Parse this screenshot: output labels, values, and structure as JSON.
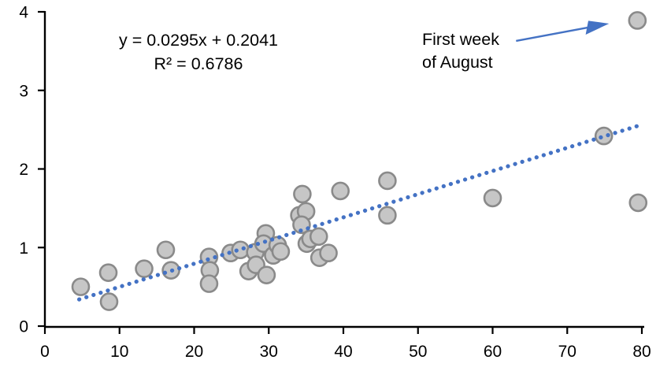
{
  "chart_data": {
    "type": "scatter",
    "title": "",
    "xlabel": "",
    "ylabel": "",
    "xlim": [
      0,
      80
    ],
    "ylim": [
      0,
      4
    ],
    "x_ticks": [
      0,
      10,
      20,
      30,
      40,
      50,
      60,
      70,
      80
    ],
    "y_ticks": [
      0,
      1,
      2,
      3,
      4
    ],
    "grid": false,
    "legend": null,
    "points": [
      [
        4.8,
        0.5
      ],
      [
        8.5,
        0.68
      ],
      [
        8.6,
        0.31
      ],
      [
        13.3,
        0.73
      ],
      [
        16.2,
        0.97
      ],
      [
        16.9,
        0.71
      ],
      [
        22.0,
        0.88
      ],
      [
        22.1,
        0.71
      ],
      [
        22.0,
        0.54
      ],
      [
        24.9,
        0.93
      ],
      [
        26.2,
        0.97
      ],
      [
        27.3,
        0.7
      ],
      [
        28.2,
        0.94
      ],
      [
        28.3,
        0.78
      ],
      [
        29.6,
        1.18
      ],
      [
        29.7,
        0.65
      ],
      [
        29.3,
        1.05
      ],
      [
        30.6,
        0.9
      ],
      [
        31.2,
        1.03
      ],
      [
        31.6,
        0.95
      ],
      [
        34.1,
        1.41
      ],
      [
        34.5,
        1.68
      ],
      [
        35.0,
        1.46
      ],
      [
        34.4,
        1.29
      ],
      [
        35.1,
        1.05
      ],
      [
        35.6,
        1.11
      ],
      [
        36.7,
        1.14
      ],
      [
        36.8,
        0.87
      ],
      [
        38.0,
        0.93
      ],
      [
        39.6,
        1.72
      ],
      [
        45.9,
        1.85
      ],
      [
        45.9,
        1.41
      ],
      [
        60.0,
        1.63
      ],
      [
        74.9,
        2.42
      ],
      [
        79.4,
        3.89
      ],
      [
        79.5,
        1.57
      ]
    ],
    "trendline": {
      "slope": 0.0295,
      "intercept": 0.2041,
      "x_start": 4.6,
      "x_end": 79.6,
      "style": "dotted"
    },
    "equation": {
      "line1": "y = 0.0295x + 0.2041",
      "line2": "R² = 0.6786"
    },
    "annotation": {
      "lines": [
        "First week",
        "of August"
      ],
      "target_point": [
        79.4,
        3.89
      ]
    },
    "colors": {
      "marker_fill": "#C6C6C6",
      "marker_stroke": "#8A8A8A",
      "trend": "#4472C4",
      "arrow": "#4472C4",
      "axis": "#000000",
      "text": "#000000"
    }
  }
}
